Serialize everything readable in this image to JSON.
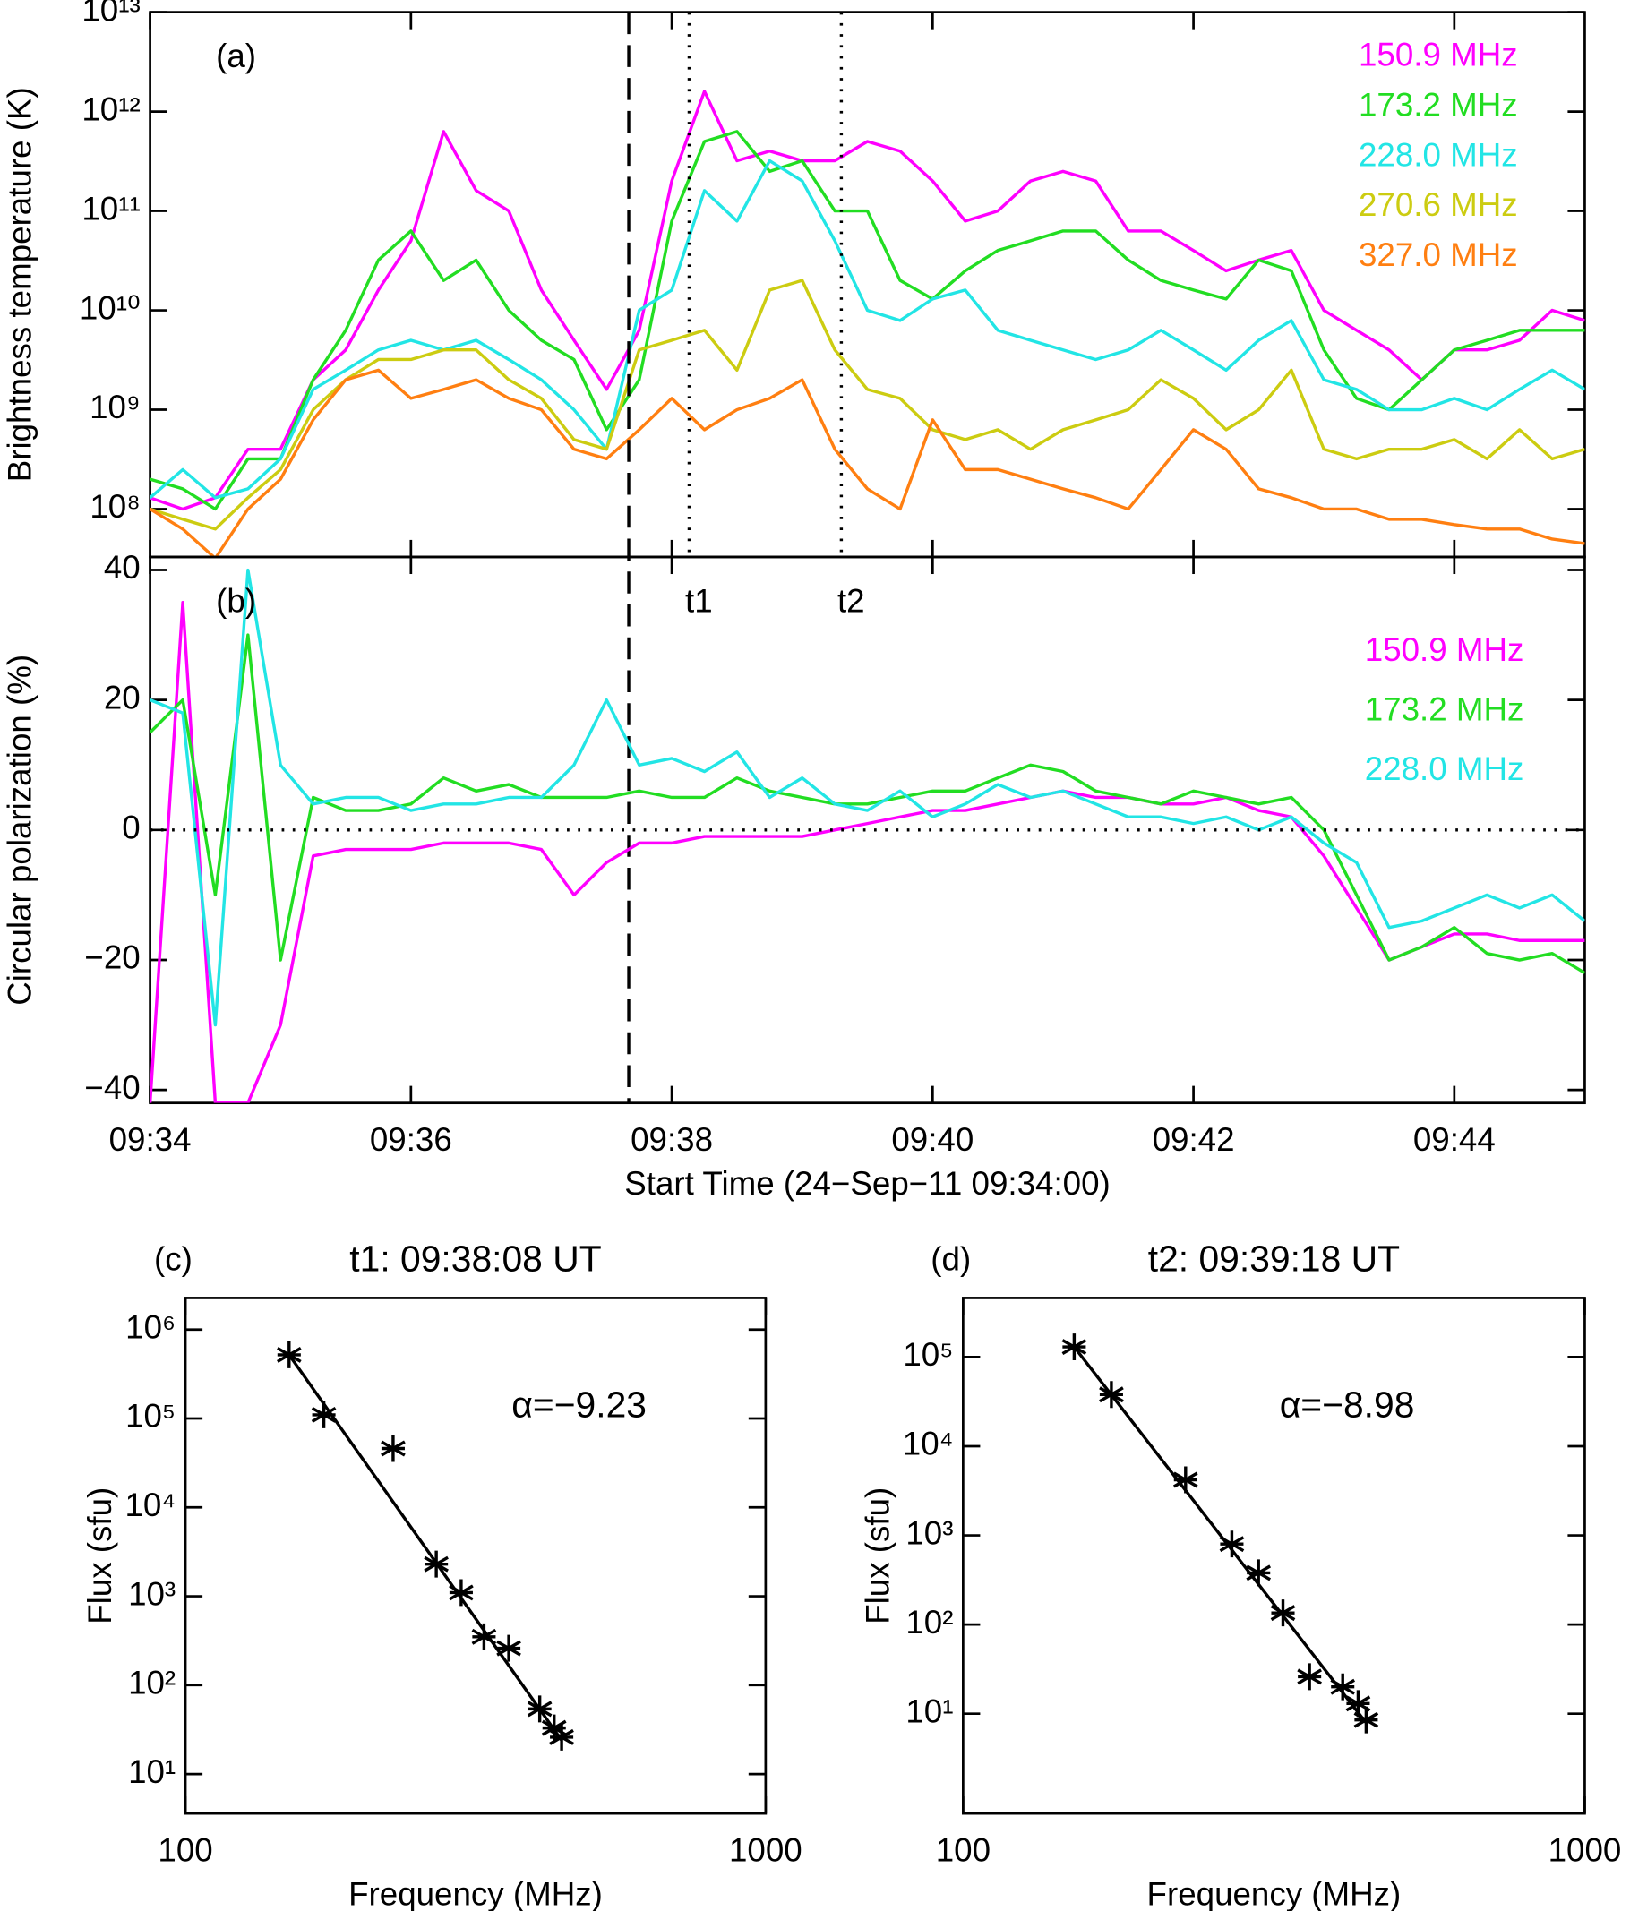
{
  "chart_data": [
    {
      "type": "line",
      "label": "(a)",
      "ylabel": "Brightness temperature (K)",
      "ylog": true,
      "legend": "upper right",
      "xlim": [
        0,
        11
      ],
      "xticks": [
        0,
        2,
        4,
        6,
        8,
        10
      ],
      "ylim": [
        33000000.0,
        10000000000000.0
      ],
      "yticks": [
        {
          "value": 100000000.0,
          "label": "10⁸"
        },
        {
          "value": 1000000000.0,
          "label": "10⁹"
        },
        {
          "value": 10000000000.0,
          "label": "10¹⁰"
        },
        {
          "value": 100000000000.0,
          "label": "10¹¹"
        },
        {
          "value": 1000000000000.0,
          "label": "10¹²"
        },
        {
          "value": 10000000000000.0,
          "label": "10¹³"
        }
      ],
      "markers": [
        {
          "x": 3.67,
          "style": "dashed"
        },
        {
          "x": 4.133,
          "style": "dotted",
          "label": "t1"
        },
        {
          "x": 5.3,
          "style": "dotted",
          "label": "t2"
        }
      ],
      "x": [
        0,
        0.25,
        0.5,
        0.75,
        1,
        1.25,
        1.5,
        1.75,
        2,
        2.25,
        2.5,
        2.75,
        3,
        3.25,
        3.5,
        3.75,
        4,
        4.25,
        4.5,
        4.75,
        5,
        5.25,
        5.5,
        5.75,
        6,
        6.25,
        6.5,
        6.75,
        7,
        7.25,
        7.5,
        7.75,
        8,
        8.25,
        8.5,
        8.75,
        9,
        9.25,
        9.5,
        9.75,
        10,
        10.25,
        10.5,
        10.75,
        11
      ],
      "series": [
        {
          "name": "150.9 MHz",
          "color": "#ff00ff",
          "values": [
            130000000.0,
            100000000.0,
            130000000.0,
            400000000.0,
            400000000.0,
            2000000000.0,
            4000000000.0,
            16000000000.0,
            50000000000.0,
            630000000000.0,
            160000000000.0,
            100000000000.0,
            16000000000.0,
            5000000000.0,
            1600000000.0,
            6300000000.0,
            200000000000.0,
            1600000000000.0,
            320000000000.0,
            400000000000.0,
            320000000000.0,
            320000000000.0,
            500000000000.0,
            400000000000.0,
            200000000000.0,
            79000000000.0,
            100000000000.0,
            200000000000.0,
            250000000000.0,
            200000000000.0,
            63000000000.0,
            63000000000.0,
            40000000000.0,
            25000000000.0,
            32000000000.0,
            40000000000.0,
            10000000000.0,
            6300000000.0,
            4000000000.0,
            2000000000.0,
            4000000000.0,
            4000000000.0,
            5000000000.0,
            10000000000.0,
            7900000000.0
          ]
        },
        {
          "name": "173.2 MHz",
          "color": "#22dd22",
          "values": [
            200000000.0,
            160000000.0,
            100000000.0,
            320000000.0,
            320000000.0,
            2000000000.0,
            6300000000.0,
            32000000000.0,
            63000000000.0,
            20000000000.0,
            32000000000.0,
            10000000000.0,
            5000000000.0,
            3200000000.0,
            630000000.0,
            2000000000.0,
            79000000000.0,
            500000000000.0,
            630000000000.0,
            250000000000.0,
            320000000000.0,
            100000000000.0,
            100000000000.0,
            20000000000.0,
            13000000000.0,
            25000000000.0,
            40000000000.0,
            50000000000.0,
            63000000000.0,
            63000000000.0,
            32000000000.0,
            20000000000.0,
            16000000000.0,
            13000000000.0,
            32000000000.0,
            25000000000.0,
            4000000000.0,
            1300000000.0,
            1000000000.0,
            2000000000.0,
            4000000000.0,
            5000000000.0,
            6300000000.0,
            6300000000.0,
            6300000000.0
          ]
        },
        {
          "name": "228.0 MHz",
          "color": "#22e5e5",
          "values": [
            130000000.0,
            250000000.0,
            130000000.0,
            160000000.0,
            320000000.0,
            1600000000.0,
            2500000000.0,
            4000000000.0,
            5000000000.0,
            4000000000.0,
            5000000000.0,
            3200000000.0,
            2000000000.0,
            1000000000.0,
            400000000.0,
            10000000000.0,
            16000000000.0,
            160000000000.0,
            79000000000.0,
            320000000000.0,
            200000000000.0,
            50000000000.0,
            10000000000.0,
            7900000000.0,
            13000000000.0,
            16000000000.0,
            6300000000.0,
            5000000000.0,
            4000000000.0,
            3200000000.0,
            4000000000.0,
            6300000000.0,
            4000000000.0,
            2500000000.0,
            5000000000.0,
            7900000000.0,
            2000000000.0,
            1600000000.0,
            1000000000.0,
            1000000000.0,
            1300000000.0,
            1000000000.0,
            1600000000.0,
            2500000000.0,
            1600000000.0
          ]
        },
        {
          "name": "270.6 MHz",
          "color": "#cccc11",
          "values": [
            100000000.0,
            79000000.0,
            63000000.0,
            130000000.0,
            250000000.0,
            1000000000.0,
            2000000000.0,
            3200000000.0,
            3200000000.0,
            4000000000.0,
            4000000000.0,
            2000000000.0,
            1300000000.0,
            500000000.0,
            400000000.0,
            4000000000.0,
            5000000000.0,
            6300000000.0,
            2500000000.0,
            16000000000.0,
            20000000000.0,
            4000000000.0,
            1600000000.0,
            1300000000.0,
            630000000.0,
            500000000.0,
            630000000.0,
            400000000.0,
            630000000.0,
            790000000.0,
            1000000000.0,
            2000000000.0,
            1300000000.0,
            630000000.0,
            1000000000.0,
            2500000000.0,
            400000000.0,
            320000000.0,
            400000000.0,
            400000000.0,
            500000000.0,
            320000000.0,
            630000000.0,
            320000000.0,
            400000000.0
          ]
        },
        {
          "name": "327.0 MHz",
          "color": "#ff7f11",
          "values": [
            100000000.0,
            63000000.0,
            32000000.0,
            100000000.0,
            200000000.0,
            790000000.0,
            2000000000.0,
            2500000000.0,
            1300000000.0,
            1600000000.0,
            2000000000.0,
            1300000000.0,
            1000000000.0,
            400000000.0,
            320000000.0,
            630000000.0,
            1300000000.0,
            630000000.0,
            1000000000.0,
            1300000000.0,
            2000000000.0,
            400000000.0,
            160000000.0,
            100000000.0,
            790000000.0,
            250000000.0,
            250000000.0,
            200000000.0,
            160000000.0,
            130000000.0,
            100000000.0,
            250000000.0,
            630000000.0,
            400000000.0,
            160000000.0,
            130000000.0,
            100000000.0,
            100000000.0,
            79000000.0,
            79000000.0,
            70000000.0,
            63000000.0,
            63000000.0,
            50000000.0,
            45000000.0
          ]
        }
      ]
    },
    {
      "type": "line",
      "label": "(b)",
      "ylabel": "Circular polarization (%)",
      "xlabel": "Start Time (24−Sep−11 09:34:00)",
      "ylog": false,
      "legend": "upper right",
      "hline": 0,
      "xlim": [
        0,
        11
      ],
      "xticks": [
        {
          "value": 0,
          "label": "09:34"
        },
        {
          "value": 2,
          "label": "09:36"
        },
        {
          "value": 4,
          "label": "09:38"
        },
        {
          "value": 6,
          "label": "09:40"
        },
        {
          "value": 8,
          "label": "09:42"
        },
        {
          "value": 10,
          "label": "09:44"
        }
      ],
      "ylim": [
        -42,
        42
      ],
      "yticks": [
        {
          "value": -40,
          "label": "−40"
        },
        {
          "value": -20,
          "label": "−20"
        },
        0,
        20,
        40
      ],
      "x": [
        0,
        0.25,
        0.5,
        0.75,
        1,
        1.25,
        1.5,
        1.75,
        2,
        2.25,
        2.5,
        2.75,
        3,
        3.25,
        3.5,
        3.75,
        4,
        4.25,
        4.5,
        4.75,
        5,
        5.25,
        5.5,
        5.75,
        6,
        6.25,
        6.5,
        6.75,
        7,
        7.25,
        7.5,
        7.75,
        8,
        8.25,
        8.5,
        8.75,
        9,
        9.25,
        9.5,
        9.75,
        10,
        10.25,
        10.5,
        10.75,
        11
      ],
      "series": [
        {
          "name": "150.9 MHz",
          "color": "#ff00ff",
          "values": [
            -42,
            35,
            -42,
            -42,
            -30,
            -4,
            -3,
            -3,
            -3,
            -2,
            -2,
            -2,
            -3,
            -10,
            -5,
            -2,
            -2,
            -1,
            -1,
            -1,
            -1,
            0,
            1,
            2,
            3,
            3,
            4,
            5,
            6,
            5,
            5,
            4,
            4,
            5,
            3,
            2,
            -4,
            -12,
            -20,
            -18,
            -16,
            -16,
            -17,
            -17,
            -17
          ]
        },
        {
          "name": "173.2 MHz",
          "color": "#22dd22",
          "values": [
            15,
            20,
            -10,
            30,
            -20,
            5,
            3,
            3,
            4,
            8,
            6,
            7,
            5,
            5,
            5,
            6,
            5,
            5,
            8,
            6,
            5,
            4,
            4,
            5,
            6,
            6,
            8,
            10,
            9,
            6,
            5,
            4,
            6,
            5,
            4,
            5,
            0,
            -10,
            -20,
            -18,
            -15,
            -19,
            -20,
            -19,
            -22
          ]
        },
        {
          "name": "228.0 MHz",
          "color": "#22e5e5",
          "values": [
            20,
            18,
            -30,
            40,
            10,
            4,
            5,
            5,
            3,
            4,
            4,
            5,
            5,
            10,
            20,
            10,
            11,
            9,
            12,
            5,
            8,
            4,
            3,
            6,
            2,
            4,
            7,
            5,
            6,
            4,
            2,
            2,
            1,
            2,
            0,
            2,
            -2,
            -5,
            -15,
            -14,
            -12,
            -10,
            -12,
            -10,
            -14
          ]
        }
      ]
    },
    {
      "type": "scatter",
      "label": "(c)",
      "title": "t1: 09:38:08 UT",
      "annotation": "α=−9.23",
      "xlabel": "Frequency (MHz)",
      "ylabel": "Flux (sfu)",
      "xlog": true,
      "ylog": true,
      "xlim": [
        100,
        1000
      ],
      "xticks": [
        100,
        1000
      ],
      "ylim": [
        3.6,
        2270000.0
      ],
      "yticks": [
        {
          "value": 10,
          "label": "10¹"
        },
        {
          "value": 100,
          "label": "10²"
        },
        {
          "value": 1000,
          "label": "10³"
        },
        {
          "value": 10000,
          "label": "10⁴"
        },
        {
          "value": 100000,
          "label": "10⁵"
        },
        {
          "value": 1000000,
          "label": "10⁶"
        }
      ],
      "x": [
        150.9,
        173.2,
        228.0,
        270.6,
        298.7,
        327.0,
        360.8,
        408.0,
        432.0,
        445.0
      ],
      "values": [
        520000.0,
        110000.0,
        46000.0,
        2300,
        1100,
        350,
        260,
        54,
        33,
        26
      ],
      "fit": {
        "x": [
          150.9,
          445.0
        ],
        "values": [
          520000.0,
          24
        ]
      }
    },
    {
      "type": "scatter",
      "label": "(d)",
      "title": "t2: 09:39:18 UT",
      "annotation": "α=−8.98",
      "xlabel": "Frequency (MHz)",
      "ylabel": "Flux (sfu)",
      "xlog": true,
      "ylog": true,
      "xlim": [
        100,
        1000
      ],
      "xticks": [
        100,
        1000
      ],
      "ylim": [
        0.76,
        460000.0
      ],
      "yticks": [
        {
          "value": 10,
          "label": "10¹"
        },
        {
          "value": 100,
          "label": "10²"
        },
        {
          "value": 1000,
          "label": "10³"
        },
        {
          "value": 10000,
          "label": "10⁴"
        },
        {
          "value": 100000,
          "label": "10⁵"
        }
      ],
      "x": [
        150.9,
        173.2,
        228.0,
        270.6,
        298.7,
        327.0,
        360.8,
        408.0,
        432.0,
        445.0
      ],
      "values": [
        130000.0,
        38000.0,
        4200,
        800,
        380,
        135,
        26,
        20,
        13,
        8.5
      ],
      "fit": {
        "x": [
          150.9,
          445.0
        ],
        "values": [
          130000.0,
          7.9
        ]
      }
    }
  ]
}
